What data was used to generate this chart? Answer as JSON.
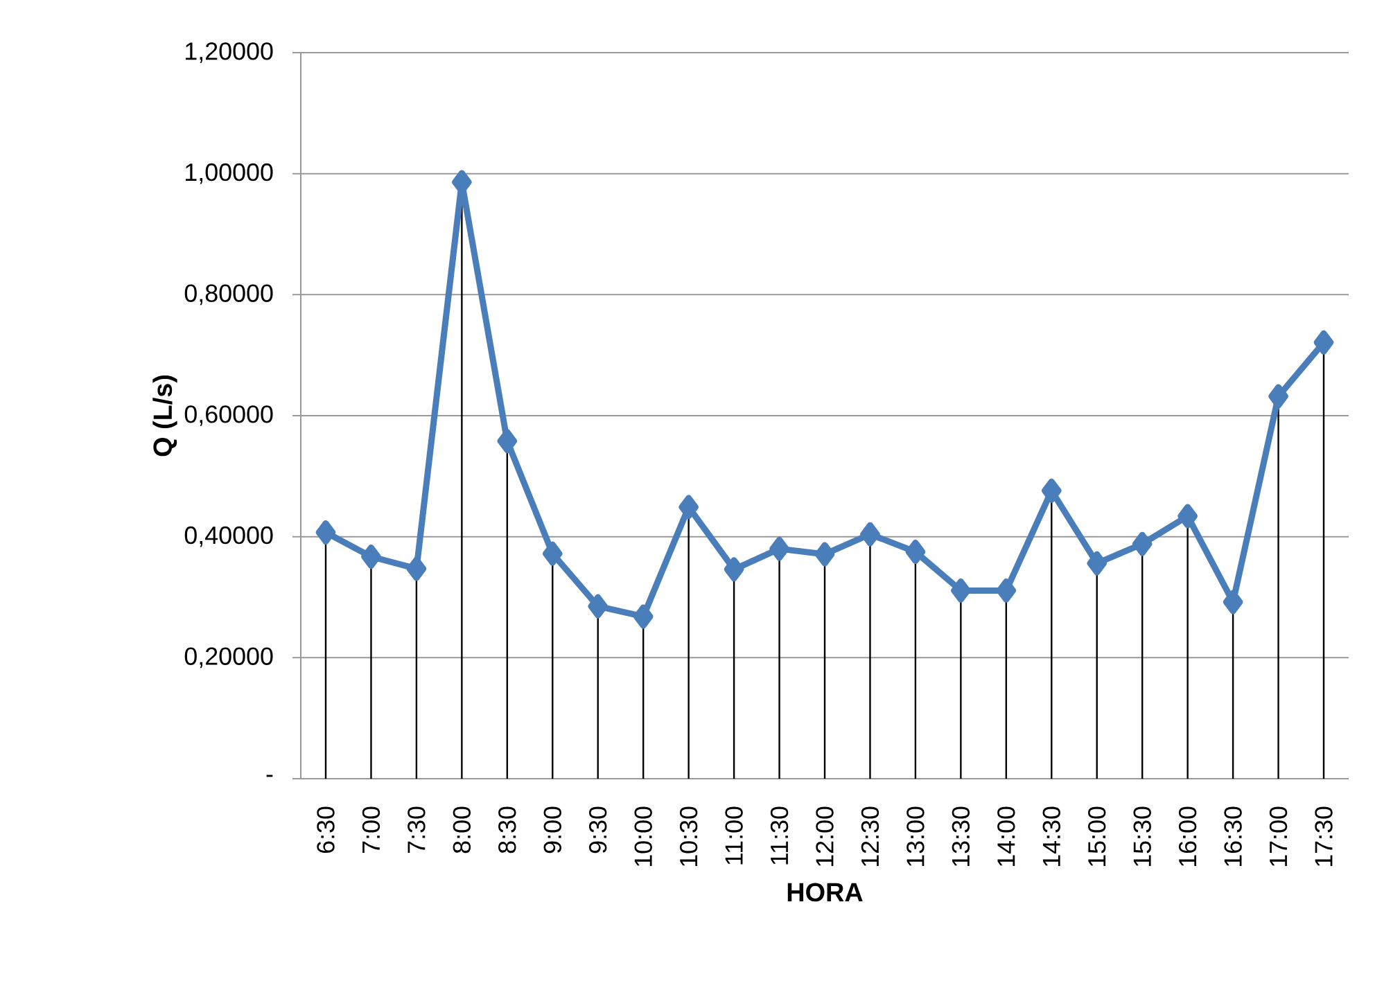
{
  "chart_data": {
    "type": "line",
    "xlabel": "HORA",
    "ylabel": "Q (L/s)",
    "categories": [
      "6:30",
      "7:00",
      "7:30",
      "8:00",
      "8:30",
      "9:00",
      "9:30",
      "10:00",
      "10:30",
      "11:00",
      "11:30",
      "12:00",
      "12:30",
      "13:00",
      "13:30",
      "14:00",
      "14:30",
      "15:00",
      "15:30",
      "16:00",
      "16:30",
      "17:00",
      "17:30"
    ],
    "series": [
      {
        "color": "#4a7ebb",
        "values": [
          0.407,
          0.367,
          0.347,
          0.986,
          0.558,
          0.372,
          0.285,
          0.268,
          0.449,
          0.346,
          0.38,
          0.371,
          0.404,
          0.375,
          0.311,
          0.311,
          0.476,
          0.356,
          0.388,
          0.434,
          0.292,
          0.632,
          0.721
        ],
        "errors": [
          [
            0,
            0.407
          ],
          [
            0,
            0.367
          ],
          [
            0,
            0.347
          ],
          [
            0,
            0.986
          ],
          [
            0,
            0.558
          ],
          [
            0,
            0.372
          ],
          [
            0,
            0.285
          ],
          [
            0,
            0.268
          ],
          [
            0,
            0.449
          ],
          [
            0,
            0.346
          ],
          [
            0,
            0.38
          ],
          [
            0,
            0.371
          ],
          [
            0,
            0.404
          ],
          [
            0,
            0.375
          ],
          [
            0,
            0.311
          ],
          [
            0,
            0.311
          ],
          [
            0,
            0.476
          ],
          [
            0,
            0.356
          ],
          [
            0,
            0.388
          ],
          [
            0,
            0.434
          ],
          [
            0,
            0.292
          ],
          [
            0,
            0.632
          ],
          [
            0,
            0.721
          ]
        ]
      }
    ],
    "ylim": [
      0,
      1.2
    ],
    "yticks": [
      {
        "value": 0,
        "label": "-"
      },
      {
        "value": 0.2,
        "label": "0,20000"
      },
      {
        "value": 0.4,
        "label": "0,40000"
      },
      {
        "value": 0.6,
        "label": "0,60000"
      },
      {
        "value": 0.8,
        "label": "0,80000"
      },
      {
        "value": 1.0,
        "label": "1,00000"
      },
      {
        "value": 1.2,
        "label": "1,20000"
      }
    ],
    "grid": "y",
    "marker": "diamond",
    "line_style": "solid"
  }
}
